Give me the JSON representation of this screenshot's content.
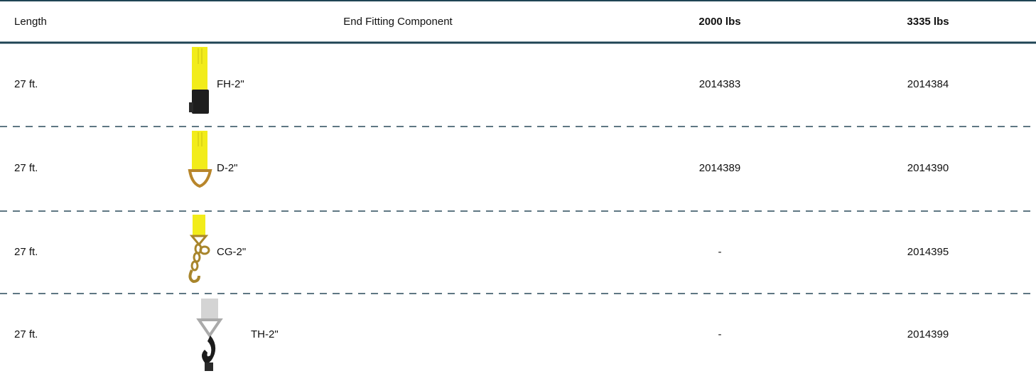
{
  "table": {
    "header": [
      "Length",
      "End Fitting Component",
      "2000 lbs",
      "3335 lbs"
    ],
    "rows": [
      [
        "27 ft.",
        "FH-2\"",
        "2014383",
        "2014384"
      ],
      [
        "27 ft.",
        "D-2\"",
        "2014389",
        "2014390"
      ],
      [
        "27 ft.",
        "CG-2\"",
        "-",
        "2014395"
      ],
      [
        "27 ft.",
        "TH-2\"",
        "-",
        "2014399"
      ]
    ]
  }
}
